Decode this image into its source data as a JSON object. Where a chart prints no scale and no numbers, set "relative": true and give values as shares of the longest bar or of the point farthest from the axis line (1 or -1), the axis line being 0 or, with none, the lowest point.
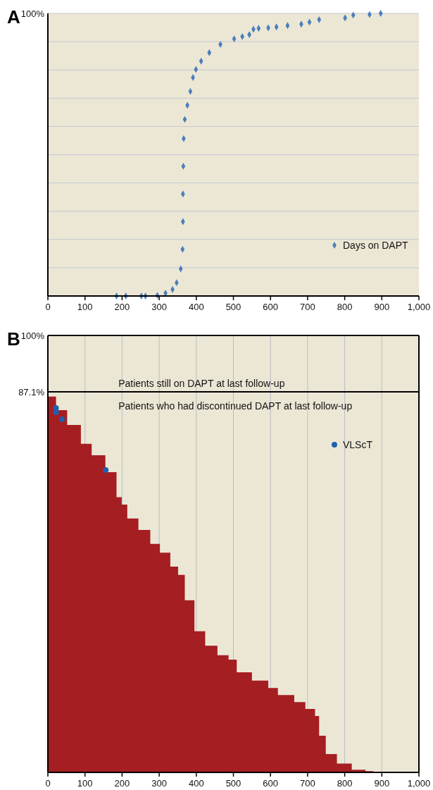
{
  "chart_data": [
    {
      "type": "scatter",
      "title": "A",
      "relative": true,
      "annotations": [
        "100%"
      ],
      "xlim": [
        0,
        1000
      ],
      "xticks": [
        0,
        100,
        200,
        300,
        400,
        500,
        600,
        700,
        800,
        900,
        {
          "value": 1000,
          "label": "1,000"
        }
      ],
      "grid": "y",
      "legend": "bottom right",
      "marker": "diamond",
      "series": [
        {
          "name": "Days on DAPT",
          "color": "#4a7ebb",
          "x": [
            185,
            210,
            252,
            263,
            295,
            317,
            336,
            347,
            358,
            363,
            364,
            364,
            365,
            366,
            369,
            376,
            384,
            391,
            399,
            413,
            435,
            465,
            502,
            524,
            543,
            554,
            568,
            594,
            616,
            646,
            683,
            705,
            731,
            801,
            823,
            867,
            897
          ],
          "values": [
            0,
            0,
            0,
            0,
            0.002,
            0.01,
            0.023,
            0.047,
            0.096,
            0.165,
            0.263,
            0.361,
            0.459,
            0.557,
            0.625,
            0.675,
            0.724,
            0.773,
            0.802,
            0.831,
            0.861,
            0.89,
            0.91,
            0.918,
            0.925,
            0.944,
            0.947,
            0.949,
            0.952,
            0.957,
            0.962,
            0.969,
            0.978,
            0.984,
            0.994,
            0.996,
            1
          ]
        }
      ]
    },
    {
      "type": "area",
      "title": "B",
      "xlim": [
        0,
        1000
      ],
      "xticks": [
        0,
        100,
        200,
        300,
        400,
        500,
        600,
        700,
        800,
        900,
        {
          "value": 1000,
          "label": "1,000"
        }
      ],
      "ylim": [
        0,
        100
      ],
      "yticks": [
        {
          "value": 87.1,
          "label": "87.1%"
        },
        {
          "value": 100,
          "label": "100%"
        }
      ],
      "grid": "x",
      "legend": "top right",
      "ref_lines": [
        {
          "axis": "y",
          "value": 87.1,
          "color": "#000000"
        }
      ],
      "annotations": [
        "Patients still on DAPT at last follow-up",
        "Patients who had discontinued DAPT at last follow-up"
      ],
      "series": [
        {
          "color": "#a51e22",
          "x": [
            0,
            1,
            22,
            52,
            89,
            118,
            155,
            185,
            199,
            214,
            244,
            276,
            302,
            330,
            351,
            369,
            395,
            424,
            457,
            487,
            509,
            550,
            594,
            620,
            664,
            694,
            720,
            731,
            749,
            779,
            801,
            819,
            856,
            878
          ],
          "values": [
            86.5,
            86,
            82.9,
            79.5,
            75.2,
            72.6,
            68.7,
            63,
            61.3,
            58.1,
            55.5,
            52.3,
            50.3,
            47.1,
            45.2,
            39.4,
            32.3,
            29,
            26.8,
            25.8,
            22.9,
            21,
            19.3,
            17.7,
            16.1,
            14.5,
            12.9,
            8.4,
            4.2,
            2,
            2,
            0.6,
            0.3,
            0
          ]
        },
        {
          "type": "scatter",
          "name": "VLScT",
          "color": "#1f5fb0",
          "marker": "circle",
          "x": [
            22,
            22,
            38,
            156
          ],
          "values": [
            83.4,
            82.4,
            80.8,
            69.2
          ]
        }
      ]
    }
  ]
}
